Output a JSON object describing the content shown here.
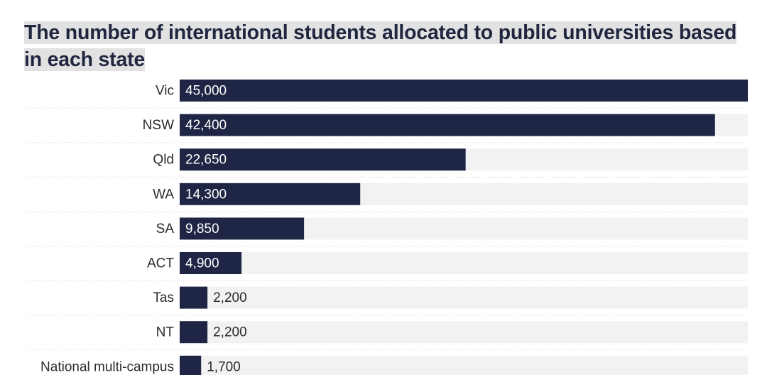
{
  "chart_data": {
    "type": "bar",
    "orientation": "horizontal",
    "title": "The number of international students allocated to public universities based in each state",
    "categories": [
      "Vic",
      "NSW",
      "Qld",
      "WA",
      "SA",
      "ACT",
      "Tas",
      "NT",
      "National multi-campus"
    ],
    "values": [
      45000,
      42400,
      22650,
      14300,
      9850,
      4900,
      2200,
      2200,
      1700
    ],
    "value_labels": [
      "45,000",
      "42,400",
      "22,650",
      "14,300",
      "9,850",
      "4,900",
      "2,200",
      "2,200",
      "1,700"
    ],
    "xlim": [
      0,
      45000
    ],
    "xlabel": "",
    "ylabel": "",
    "legend": "none",
    "grid": false,
    "colors": {
      "bar": "#1f2645",
      "track": "#f2f2f2",
      "title_highlight": "#e2e2e2",
      "label_text": "#2b2b2b",
      "value_inside": "#ffffff",
      "value_outside": "#2b2b2b",
      "separator": "#d6d6d6"
    }
  }
}
